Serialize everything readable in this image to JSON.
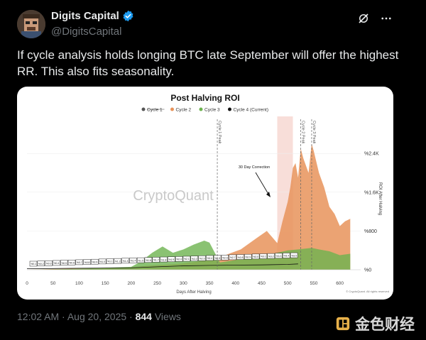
{
  "author": {
    "display_name": "Digits Capital",
    "handle": "@DigitsCapital",
    "verified": true,
    "avatar_icon": "pixel-avatar-icon"
  },
  "tweet": {
    "text": "If cycle analysis holds longing BTC late September will offer the highest RR. This also fits seasonality."
  },
  "meta": {
    "time": "12:02 AM",
    "sep": "·",
    "date": "Aug 20, 2025",
    "sep2": "·",
    "views_count": "844",
    "views_label": "Views"
  },
  "brand": {
    "name": "金色财经"
  },
  "chart_data": {
    "type": "area",
    "title": "Post Halving ROI",
    "legend": [
      {
        "name": "Cycle 1",
        "color": "#555555",
        "struck": true
      },
      {
        "name": "Cycle 2",
        "color": "#e8935a"
      },
      {
        "name": "Cycle 3",
        "color": "#6db34f"
      },
      {
        "name": "Cycle 4 (Current)",
        "color": "#111111"
      }
    ],
    "xlabel": "Days After Halving",
    "ylabel": "ROI After Halving",
    "xlim": [
      0,
      640
    ],
    "ylim": [
      0,
      2900
    ],
    "xticks": [
      0,
      50,
      100,
      150,
      200,
      250,
      300,
      350,
      400,
      450,
      500,
      550,
      600
    ],
    "yticks": [
      {
        "value": 0,
        "label": "%0"
      },
      {
        "value": 800,
        "label": "%800"
      },
      {
        "value": 1600,
        "label": "%1.6K"
      },
      {
        "value": 2400,
        "label": "%2.4K"
      }
    ],
    "watermark": "CryptoQuant",
    "credit": "© CryptoQuant. All rights reserved",
    "annotation": "30 Day Correction",
    "shade_range": [
      480,
      510
    ],
    "vlines": [
      {
        "x": 365,
        "label": "Cycle 1 Peak"
      },
      {
        "x": 525,
        "label": "Cycle 2 Peak"
      },
      {
        "x": 546,
        "label": "Cycle 3 Peak"
      }
    ],
    "cycle4_labels": [
      "%0.1",
      "%0.2",
      "%0.3",
      "%0.4",
      "%0.5",
      "%0.6",
      "%0.7",
      "%0.8",
      "%0.9",
      "%1.0",
      "%1.1",
      "%1.2",
      "%1.3",
      "%1.4",
      "%1.5",
      "%1.6",
      "%1.7",
      "%1.8",
      "%1.9",
      "%2.0",
      "%2.1",
      "%2.2",
      "%2.3",
      "%2.4",
      "%2.5",
      "%2.6",
      "%2.7",
      "%2.8",
      "%2.9",
      "%3.0",
      "%3.1",
      "%3.2",
      "%3.3",
      "%3.4",
      "%3.5"
    ],
    "series": [
      {
        "name": "Cycle 2",
        "color": "#e8935a",
        "x": [
          0,
          50,
          100,
          150,
          200,
          230,
          260,
          290,
          320,
          350,
          380,
          410,
          440,
          460,
          480,
          490,
          500,
          505,
          510,
          515,
          520,
          525,
          530,
          540,
          546,
          550,
          560,
          570,
          580,
          590,
          600,
          610,
          620
        ],
        "y": [
          0,
          15,
          25,
          35,
          50,
          80,
          100,
          120,
          160,
          200,
          300,
          420,
          650,
          800,
          550,
          1000,
          1400,
          1700,
          2100,
          2200,
          1900,
          2500,
          2300,
          2000,
          2600,
          2450,
          2000,
          1700,
          1300,
          1150,
          900,
          1000,
          1050
        ]
      },
      {
        "name": "Cycle 3",
        "color": "#6db34f",
        "x": [
          0,
          50,
          100,
          150,
          200,
          220,
          240,
          260,
          280,
          300,
          320,
          340,
          350,
          370,
          400,
          430,
          460,
          480,
          500,
          520,
          546,
          560,
          580,
          600,
          620
        ],
        "y": [
          0,
          10,
          20,
          40,
          60,
          180,
          350,
          480,
          350,
          420,
          520,
          600,
          560,
          150,
          200,
          270,
          300,
          350,
          400,
          420,
          450,
          420,
          380,
          300,
          330
        ]
      },
      {
        "name": "Cycle 4 (Current)",
        "color": "#111111",
        "x": [
          0,
          50,
          100,
          150,
          200,
          250,
          300,
          350,
          400,
          450,
          500,
          520
        ],
        "y": [
          20,
          25,
          30,
          35,
          40,
          60,
          80,
          90,
          95,
          100,
          110,
          120
        ]
      }
    ]
  }
}
